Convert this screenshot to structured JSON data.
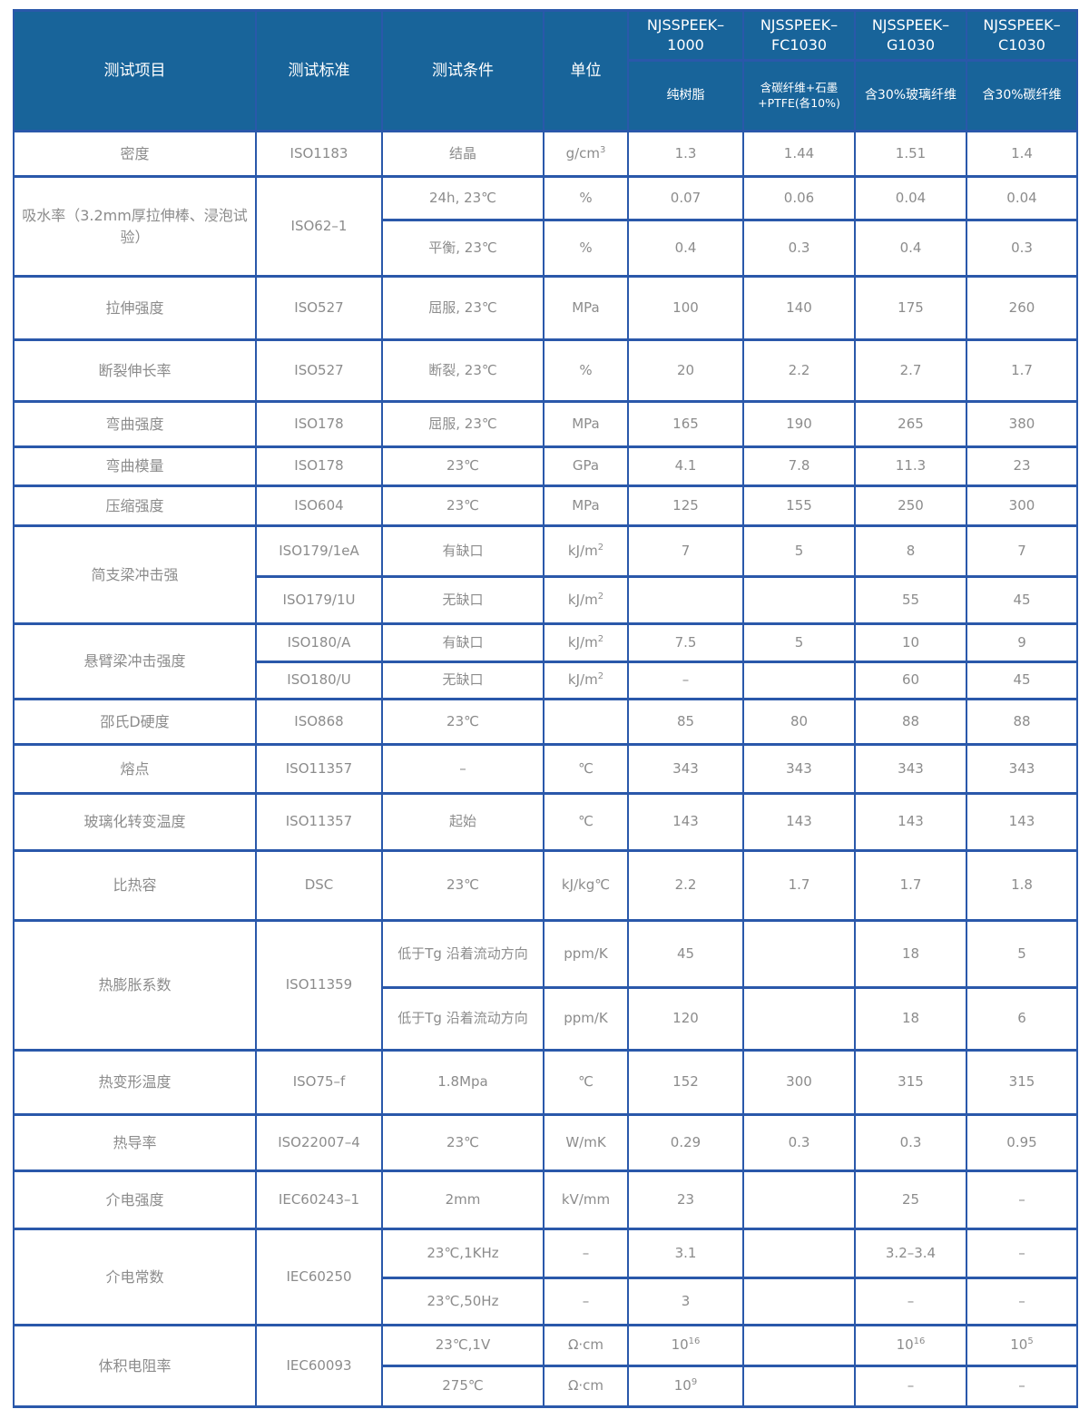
{
  "table": {
    "header": {
      "col_item": "测试项目",
      "col_standard": "测试标准",
      "col_condition": "测试条件",
      "col_unit": "单位",
      "products": [
        {
          "name": "NJSSPEEK–1000",
          "desc": "纯树脂"
        },
        {
          "name": "NJSSPEEK–FC1030",
          "desc": "含碳纤维+石墨+PTFE(各10%)"
        },
        {
          "name": "NJSSPEEK–G1030",
          "desc": "含30%玻璃纤维"
        },
        {
          "name": "NJSSPEEK–C1030",
          "desc": "含30%碳纤维"
        }
      ],
      "border_color": "#2a58aa",
      "header_bg_color": "#18649a"
    },
    "rows": [
      {
        "item": "密度",
        "item_span": 1,
        "standard": "ISO1183",
        "standard_span": 1,
        "condition": "结晶",
        "unit": "g/cm^3",
        "values": [
          "1.3",
          "1.44",
          "1.51",
          "1.4"
        ]
      },
      {
        "item": "吸水率（3.2mm厚拉伸棒、浸泡试验）",
        "item_span": 2,
        "standard": "ISO62–1",
        "standard_span": 2,
        "condition": "24h, 23℃",
        "unit": "%",
        "values": [
          "0.07",
          "0.06",
          "0.04",
          "0.04"
        ]
      },
      {
        "condition": "平衡, 23℃",
        "unit": "%",
        "values": [
          "0.4",
          "0.3",
          "0.4",
          "0.3"
        ]
      },
      {
        "item": "拉伸强度",
        "standard": "ISO527",
        "condition": "屈服, 23℃",
        "unit": "MPa",
        "values": [
          "100",
          "140",
          "175",
          "260"
        ]
      },
      {
        "item": "断裂伸长率",
        "standard": "ISO527",
        "condition": "断裂, 23℃",
        "unit": "%",
        "values": [
          "20",
          "2.2",
          "2.7",
          "1.7"
        ]
      },
      {
        "item": "弯曲强度",
        "standard": "ISO178",
        "condition": "屈服, 23℃",
        "unit": "MPa",
        "values": [
          "165",
          "190",
          "265",
          "380"
        ]
      },
      {
        "item": "弯曲模量",
        "standard": "ISO178",
        "condition": "23℃",
        "unit": "GPa",
        "values": [
          "4.1",
          "7.8",
          "11.3",
          "23"
        ]
      },
      {
        "item": "压缩强度",
        "standard": "ISO604",
        "condition": "23℃",
        "unit": "MPa",
        "values": [
          "125",
          "155",
          "250",
          "300"
        ]
      },
      {
        "item": "简支梁冲击强",
        "item_span": 2,
        "standard": "ISO179/1eA",
        "condition": "有缺口",
        "unit": "kJ/m^2",
        "values": [
          "7",
          "5",
          "8",
          "7"
        ]
      },
      {
        "standard": "ISO179/1U",
        "condition": "无缺口",
        "unit": "kJ/m^2",
        "values": [
          "",
          "",
          "55",
          "45"
        ]
      },
      {
        "item": "悬臂梁冲击强度",
        "item_span": 2,
        "standard": "ISO180/A",
        "condition": "有缺口",
        "unit": "kJ/m^2",
        "values": [
          "7.5",
          "5",
          "10",
          "9"
        ]
      },
      {
        "standard": "ISO180/U",
        "condition": "无缺口",
        "unit": "kJ/m^2",
        "values": [
          "–",
          "",
          "60",
          "45"
        ]
      },
      {
        "item": "邵氏D硬度",
        "standard": "ISO868",
        "condition": "23℃",
        "unit": "",
        "values": [
          "85",
          "80",
          "88",
          "88"
        ]
      },
      {
        "item": "熔点",
        "standard": "ISO11357",
        "condition": "–",
        "unit": "℃",
        "values": [
          "343",
          "343",
          "343",
          "343"
        ]
      },
      {
        "item": "玻璃化转变温度",
        "standard": "ISO11357",
        "condition": "起始",
        "unit": "℃",
        "values": [
          "143",
          "143",
          "143",
          "143"
        ]
      },
      {
        "item": "比热容",
        "standard": "DSC",
        "condition": "23℃",
        "unit": "kJ/kg℃",
        "values": [
          "2.2",
          "1.7",
          "1.7",
          "1.8"
        ]
      },
      {
        "item": "热膨胀系数",
        "item_span": 2,
        "standard": "ISO11359",
        "standard_span": 2,
        "condition": "低于Tg 沿着流动方向",
        "unit": "ppm/K",
        "values": [
          "45",
          "",
          "18",
          "5"
        ]
      },
      {
        "condition": "低于Tg 沿着流动方向",
        "unit": "ppm/K",
        "values": [
          "120",
          "",
          "18",
          "6"
        ]
      },
      {
        "item": "热变形温度",
        "standard": "ISO75–f",
        "condition": "1.8Mpa",
        "unit": "℃",
        "values": [
          "152",
          "300",
          "315",
          "315"
        ]
      },
      {
        "item": "热导率",
        "standard": "ISO22007–4",
        "condition": "23℃",
        "unit": "W/mK",
        "values": [
          "0.29",
          "0.3",
          "0.3",
          "0.95"
        ]
      },
      {
        "item": "介电强度",
        "standard": "IEC60243–1",
        "condition": "2mm",
        "unit": "kV/mm",
        "values": [
          "23",
          "",
          "25",
          "–"
        ]
      },
      {
        "item": "介电常数",
        "item_span": 2,
        "standard": "IEC60250",
        "standard_span": 2,
        "condition": "23℃,1KHz",
        "unit": "–",
        "values": [
          "3.1",
          "",
          "3.2–3.4",
          "–"
        ]
      },
      {
        "condition": "23℃,50Hz",
        "unit": "–",
        "values": [
          "3",
          "",
          "–",
          "–"
        ]
      },
      {
        "item": "体积电阻率",
        "item_span": 2,
        "standard": "IEC60093",
        "standard_span": 2,
        "condition": "23℃,1V",
        "unit": "Ω·cm",
        "values": [
          "10^16",
          "",
          "10^16",
          "10^5"
        ]
      },
      {
        "condition": "275℃",
        "unit": "Ω·cm",
        "values": [
          "10^9",
          "",
          "–",
          "–"
        ]
      }
    ]
  }
}
